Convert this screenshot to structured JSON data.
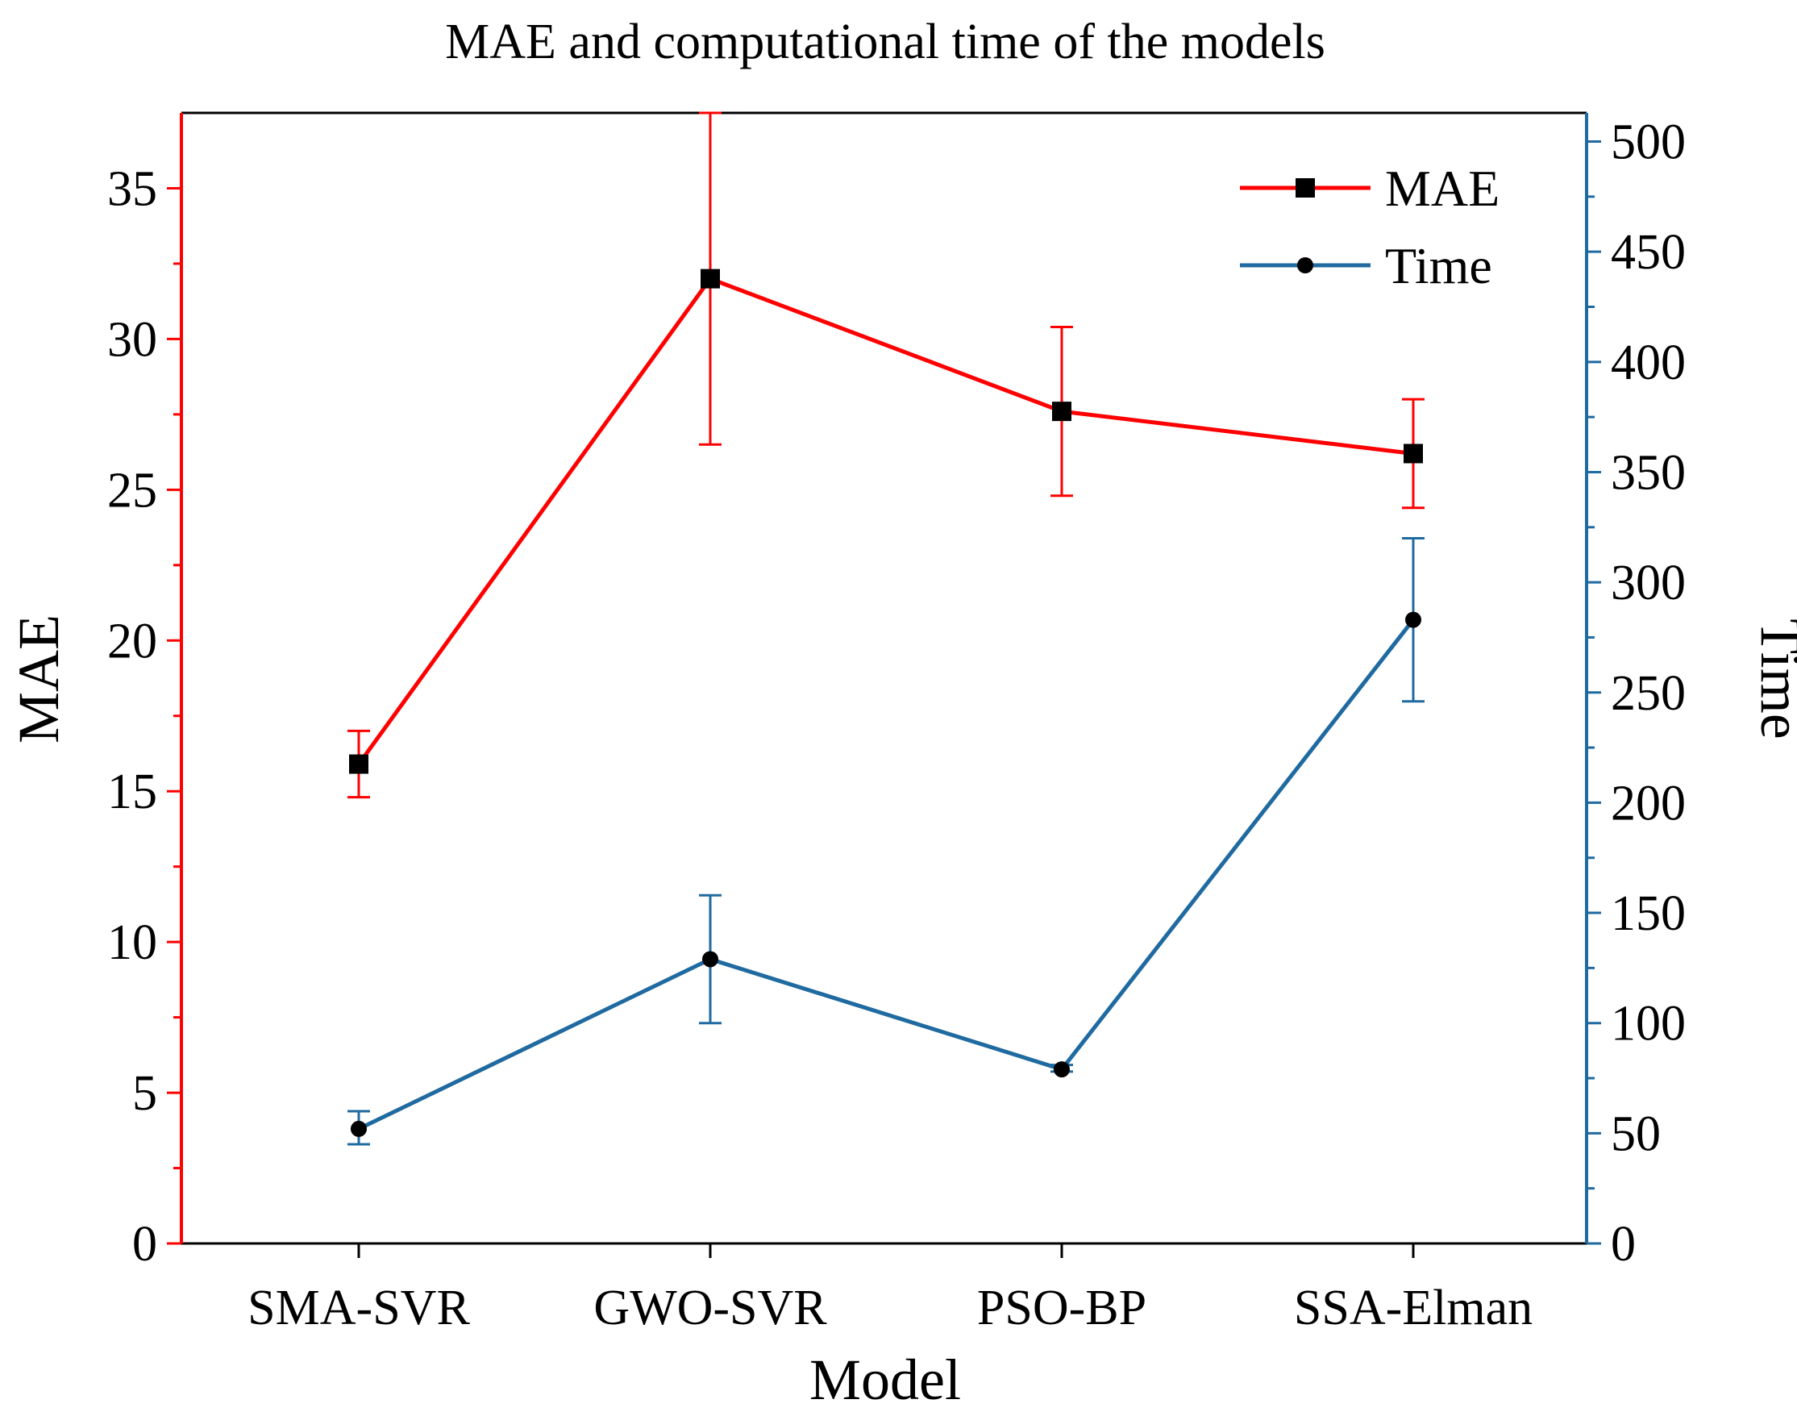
{
  "chart_data": {
    "type": "line",
    "title": "MAE and computational time of the models",
    "xlabel": "Model",
    "categories": [
      "SMA-SVR",
      "GWO-SVR",
      "PSO-BP",
      "SSA-Elman"
    ],
    "y_left": {
      "label": "MAE",
      "range": [
        0,
        37.5
      ],
      "ticks": [
        0,
        5,
        10,
        15,
        20,
        25,
        30,
        35
      ],
      "color": "#ff0000"
    },
    "y_right": {
      "label": "Time",
      "range": [
        0,
        513
      ],
      "ticks": [
        0,
        50,
        100,
        150,
        200,
        250,
        300,
        350,
        400,
        450,
        500
      ],
      "color": "#1f6aa0"
    },
    "series": [
      {
        "name": "MAE",
        "axis": "left",
        "marker": "square",
        "color": "#ff0000",
        "values": [
          15.9,
          32.0,
          27.6,
          26.2
        ],
        "err_low": [
          14.8,
          26.5,
          24.8,
          24.4
        ],
        "err_high": [
          17.0,
          37.5,
          30.4,
          28.0
        ]
      },
      {
        "name": "Time",
        "axis": "right",
        "marker": "circle",
        "color": "#1f6aa0",
        "values": [
          52,
          129,
          79,
          283
        ],
        "err_low": [
          45,
          100,
          78,
          246
        ],
        "err_high": [
          60,
          158,
          81,
          320
        ]
      }
    ],
    "legend": {
      "position": "top-right"
    },
    "grid": false
  }
}
